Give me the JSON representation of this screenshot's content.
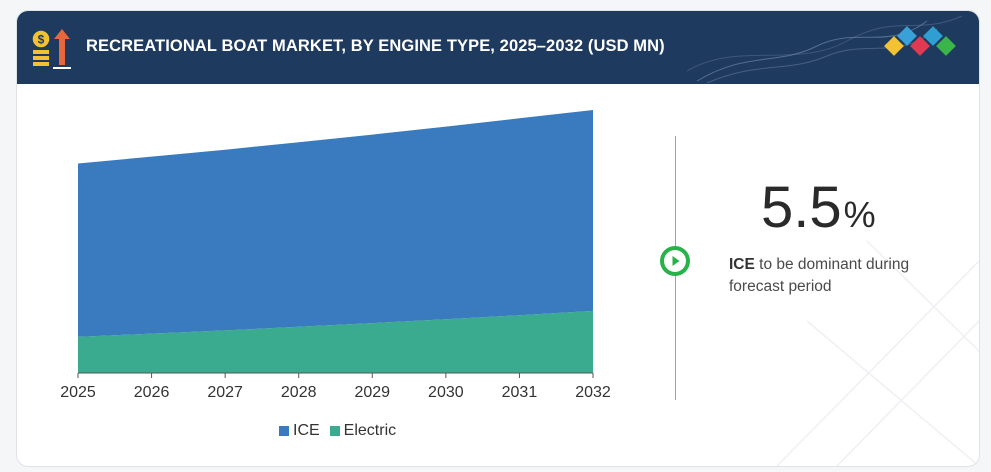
{
  "header": {
    "title": "RECREATIONAL BOAT MARKET, BY ENGINE TYPE, 2025–2032 (USD MN)"
  },
  "highlight": {
    "value": "5.5",
    "unit": "%",
    "bold_label": "ICE",
    "text": " to be dominant during forecast period"
  },
  "colors": {
    "header_bg": "#1f3a5f",
    "ice": "#3a7bbf",
    "electric": "#3bab8f",
    "play": "#27b24a"
  },
  "chart_data": {
    "type": "area",
    "stacked": true,
    "title": "RECREATIONAL BOAT MARKET, BY ENGINE TYPE, 2025–2032 (USD MN)",
    "x": [
      "2025",
      "2026",
      "2027",
      "2028",
      "2029",
      "2030",
      "2031",
      "2032"
    ],
    "series": [
      {
        "name": "Electric",
        "values": [
          10.0,
          10.9,
          11.8,
          12.8,
          13.8,
          14.9,
          16.0,
          17.2
        ]
      },
      {
        "name": "ICE",
        "values": [
          48.0,
          49.0,
          50.0,
          51.1,
          52.2,
          53.3,
          54.5,
          55.6
        ]
      }
    ],
    "ylim": [
      0,
      80
    ],
    "yaxis_visible": false,
    "grid": false,
    "legend_position": "bottom-center",
    "legend": [
      "ICE",
      "Electric"
    ]
  }
}
